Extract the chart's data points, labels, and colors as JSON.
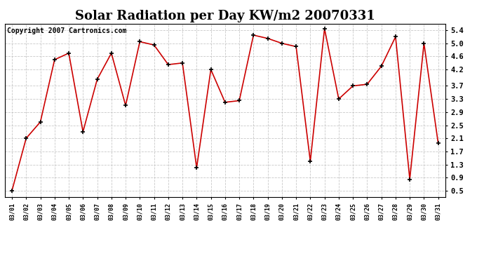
{
  "title": "Solar Radiation per Day KW/m2 20070331",
  "copyright": "Copyright 2007 Cartronics.com",
  "dates": [
    "03/01",
    "03/02",
    "03/03",
    "03/04",
    "03/05",
    "03/06",
    "03/07",
    "03/08",
    "03/09",
    "03/10",
    "03/11",
    "03/12",
    "03/13",
    "03/14",
    "03/15",
    "03/16",
    "03/17",
    "03/18",
    "03/19",
    "03/20",
    "03/21",
    "03/22",
    "03/23",
    "03/24",
    "03/25",
    "03/26",
    "03/27",
    "03/28",
    "03/29",
    "03/30",
    "03/31"
  ],
  "values": [
    0.5,
    2.1,
    2.6,
    4.5,
    4.7,
    2.3,
    3.9,
    4.7,
    3.1,
    5.05,
    4.95,
    4.35,
    4.4,
    1.2,
    4.2,
    3.2,
    3.25,
    5.25,
    5.15,
    5.0,
    4.9,
    1.4,
    5.45,
    3.3,
    3.7,
    3.75,
    4.3,
    5.2,
    0.85,
    5.0,
    1.95
  ],
  "line_color": "#cc0000",
  "marker_color": "#000000",
  "bg_color": "#ffffff",
  "plot_bg_color": "#ffffff",
  "grid_color": "#bbbbbb",
  "title_fontsize": 13,
  "copyright_fontsize": 7,
  "ylim_min": 0.3,
  "ylim_max": 5.6,
  "yticks": [
    0.5,
    0.9,
    1.3,
    1.7,
    2.1,
    2.5,
    2.9,
    3.3,
    3.7,
    4.2,
    4.6,
    5.0,
    5.4
  ],
  "ytick_labels": [
    "0.5",
    "0.9",
    "1.3",
    "1.7",
    "2.1",
    "2.5",
    "2.9",
    "3.3",
    "3.7",
    "4.2",
    "4.6",
    "5.0",
    "5.4"
  ]
}
